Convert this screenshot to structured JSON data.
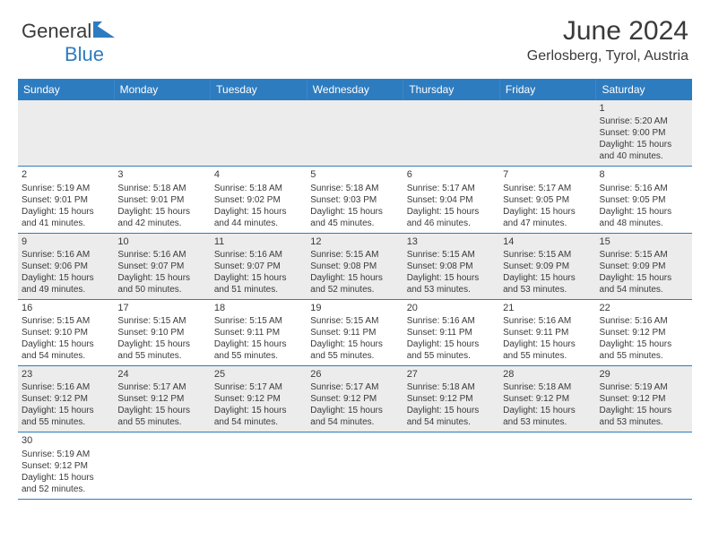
{
  "brand": {
    "name_part1": "General",
    "name_part2": "Blue"
  },
  "title": "June 2024",
  "location": "Gerlosberg, Tyrol, Austria",
  "colors": {
    "header_bg": "#2e7cc0",
    "header_text": "#ffffff",
    "row_divider": "#2e7cc0",
    "grey_row": "#ececec",
    "white_row": "#ffffff",
    "text": "#3a3a3a"
  },
  "day_headers": [
    "Sunday",
    "Monday",
    "Tuesday",
    "Wednesday",
    "Thursday",
    "Friday",
    "Saturday"
  ],
  "weeks": [
    {
      "bg": "grey",
      "days": [
        {
          "empty": true
        },
        {
          "empty": true
        },
        {
          "empty": true
        },
        {
          "empty": true
        },
        {
          "empty": true
        },
        {
          "empty": true
        },
        {
          "num": "1",
          "sunrise": "Sunrise: 5:20 AM",
          "sunset": "Sunset: 9:00 PM",
          "daylight1": "Daylight: 15 hours",
          "daylight2": "and 40 minutes."
        }
      ]
    },
    {
      "bg": "white",
      "days": [
        {
          "num": "2",
          "sunrise": "Sunrise: 5:19 AM",
          "sunset": "Sunset: 9:01 PM",
          "daylight1": "Daylight: 15 hours",
          "daylight2": "and 41 minutes."
        },
        {
          "num": "3",
          "sunrise": "Sunrise: 5:18 AM",
          "sunset": "Sunset: 9:01 PM",
          "daylight1": "Daylight: 15 hours",
          "daylight2": "and 42 minutes."
        },
        {
          "num": "4",
          "sunrise": "Sunrise: 5:18 AM",
          "sunset": "Sunset: 9:02 PM",
          "daylight1": "Daylight: 15 hours",
          "daylight2": "and 44 minutes."
        },
        {
          "num": "5",
          "sunrise": "Sunrise: 5:18 AM",
          "sunset": "Sunset: 9:03 PM",
          "daylight1": "Daylight: 15 hours",
          "daylight2": "and 45 minutes."
        },
        {
          "num": "6",
          "sunrise": "Sunrise: 5:17 AM",
          "sunset": "Sunset: 9:04 PM",
          "daylight1": "Daylight: 15 hours",
          "daylight2": "and 46 minutes."
        },
        {
          "num": "7",
          "sunrise": "Sunrise: 5:17 AM",
          "sunset": "Sunset: 9:05 PM",
          "daylight1": "Daylight: 15 hours",
          "daylight2": "and 47 minutes."
        },
        {
          "num": "8",
          "sunrise": "Sunrise: 5:16 AM",
          "sunset": "Sunset: 9:05 PM",
          "daylight1": "Daylight: 15 hours",
          "daylight2": "and 48 minutes."
        }
      ]
    },
    {
      "bg": "grey",
      "days": [
        {
          "num": "9",
          "sunrise": "Sunrise: 5:16 AM",
          "sunset": "Sunset: 9:06 PM",
          "daylight1": "Daylight: 15 hours",
          "daylight2": "and 49 minutes."
        },
        {
          "num": "10",
          "sunrise": "Sunrise: 5:16 AM",
          "sunset": "Sunset: 9:07 PM",
          "daylight1": "Daylight: 15 hours",
          "daylight2": "and 50 minutes."
        },
        {
          "num": "11",
          "sunrise": "Sunrise: 5:16 AM",
          "sunset": "Sunset: 9:07 PM",
          "daylight1": "Daylight: 15 hours",
          "daylight2": "and 51 minutes."
        },
        {
          "num": "12",
          "sunrise": "Sunrise: 5:15 AM",
          "sunset": "Sunset: 9:08 PM",
          "daylight1": "Daylight: 15 hours",
          "daylight2": "and 52 minutes."
        },
        {
          "num": "13",
          "sunrise": "Sunrise: 5:15 AM",
          "sunset": "Sunset: 9:08 PM",
          "daylight1": "Daylight: 15 hours",
          "daylight2": "and 53 minutes."
        },
        {
          "num": "14",
          "sunrise": "Sunrise: 5:15 AM",
          "sunset": "Sunset: 9:09 PM",
          "daylight1": "Daylight: 15 hours",
          "daylight2": "and 53 minutes."
        },
        {
          "num": "15",
          "sunrise": "Sunrise: 5:15 AM",
          "sunset": "Sunset: 9:09 PM",
          "daylight1": "Daylight: 15 hours",
          "daylight2": "and 54 minutes."
        }
      ]
    },
    {
      "bg": "white",
      "days": [
        {
          "num": "16",
          "sunrise": "Sunrise: 5:15 AM",
          "sunset": "Sunset: 9:10 PM",
          "daylight1": "Daylight: 15 hours",
          "daylight2": "and 54 minutes."
        },
        {
          "num": "17",
          "sunrise": "Sunrise: 5:15 AM",
          "sunset": "Sunset: 9:10 PM",
          "daylight1": "Daylight: 15 hours",
          "daylight2": "and 55 minutes."
        },
        {
          "num": "18",
          "sunrise": "Sunrise: 5:15 AM",
          "sunset": "Sunset: 9:11 PM",
          "daylight1": "Daylight: 15 hours",
          "daylight2": "and 55 minutes."
        },
        {
          "num": "19",
          "sunrise": "Sunrise: 5:15 AM",
          "sunset": "Sunset: 9:11 PM",
          "daylight1": "Daylight: 15 hours",
          "daylight2": "and 55 minutes."
        },
        {
          "num": "20",
          "sunrise": "Sunrise: 5:16 AM",
          "sunset": "Sunset: 9:11 PM",
          "daylight1": "Daylight: 15 hours",
          "daylight2": "and 55 minutes."
        },
        {
          "num": "21",
          "sunrise": "Sunrise: 5:16 AM",
          "sunset": "Sunset: 9:11 PM",
          "daylight1": "Daylight: 15 hours",
          "daylight2": "and 55 minutes."
        },
        {
          "num": "22",
          "sunrise": "Sunrise: 5:16 AM",
          "sunset": "Sunset: 9:12 PM",
          "daylight1": "Daylight: 15 hours",
          "daylight2": "and 55 minutes."
        }
      ]
    },
    {
      "bg": "grey",
      "days": [
        {
          "num": "23",
          "sunrise": "Sunrise: 5:16 AM",
          "sunset": "Sunset: 9:12 PM",
          "daylight1": "Daylight: 15 hours",
          "daylight2": "and 55 minutes."
        },
        {
          "num": "24",
          "sunrise": "Sunrise: 5:17 AM",
          "sunset": "Sunset: 9:12 PM",
          "daylight1": "Daylight: 15 hours",
          "daylight2": "and 55 minutes."
        },
        {
          "num": "25",
          "sunrise": "Sunrise: 5:17 AM",
          "sunset": "Sunset: 9:12 PM",
          "daylight1": "Daylight: 15 hours",
          "daylight2": "and 54 minutes."
        },
        {
          "num": "26",
          "sunrise": "Sunrise: 5:17 AM",
          "sunset": "Sunset: 9:12 PM",
          "daylight1": "Daylight: 15 hours",
          "daylight2": "and 54 minutes."
        },
        {
          "num": "27",
          "sunrise": "Sunrise: 5:18 AM",
          "sunset": "Sunset: 9:12 PM",
          "daylight1": "Daylight: 15 hours",
          "daylight2": "and 54 minutes."
        },
        {
          "num": "28",
          "sunrise": "Sunrise: 5:18 AM",
          "sunset": "Sunset: 9:12 PM",
          "daylight1": "Daylight: 15 hours",
          "daylight2": "and 53 minutes."
        },
        {
          "num": "29",
          "sunrise": "Sunrise: 5:19 AM",
          "sunset": "Sunset: 9:12 PM",
          "daylight1": "Daylight: 15 hours",
          "daylight2": "and 53 minutes."
        }
      ]
    },
    {
      "bg": "white",
      "days": [
        {
          "num": "30",
          "sunrise": "Sunrise: 5:19 AM",
          "sunset": "Sunset: 9:12 PM",
          "daylight1": "Daylight: 15 hours",
          "daylight2": "and 52 minutes."
        },
        {
          "empty": true
        },
        {
          "empty": true
        },
        {
          "empty": true
        },
        {
          "empty": true
        },
        {
          "empty": true
        },
        {
          "empty": true
        }
      ]
    }
  ]
}
